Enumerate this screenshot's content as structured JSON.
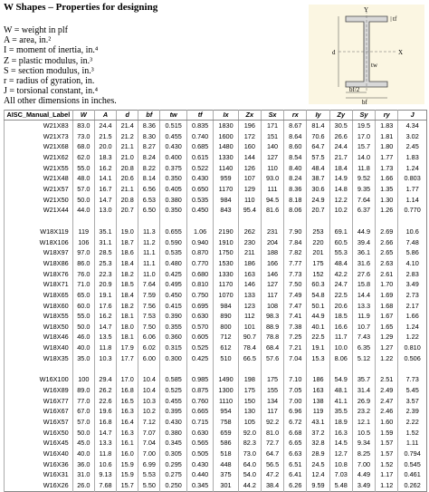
{
  "header": {
    "title": "W Shapes – Properties for designing"
  },
  "legend": [
    "W = weight in plf",
    "A = area, in.²",
    "I = moment of inertia, in.⁴",
    "Z = plastic modulus, in.³",
    "S = section modulus, in.³",
    "r = radius of gyration, in.",
    "J = torsional constant, in.⁴",
    "All other dimensions in inches."
  ],
  "diagram": {
    "labels": [
      "Y",
      "X",
      "d",
      "tf",
      "tw",
      "bf/2",
      "bf"
    ]
  },
  "table": {
    "columns": [
      "AISC_Manual_Label",
      "W",
      "A",
      "d",
      "bf",
      "tw",
      "tf",
      "Ix",
      "Zx",
      "Sx",
      "rx",
      "Iy",
      "Zy",
      "Sy",
      "ry",
      "J"
    ],
    "groups": [
      {
        "rows": [
          [
            "W21X83",
            "83.0",
            "24.4",
            "21.4",
            "8.36",
            "0.515",
            "0.835",
            "1830",
            "196",
            "171",
            "8.67",
            "81.4",
            "30.5",
            "19.5",
            "1.83",
            "4.34"
          ],
          [
            "W21X73",
            "73.0",
            "21.5",
            "21.2",
            "8.30",
            "0.455",
            "0.740",
            "1600",
            "172",
            "151",
            "8.64",
            "70.6",
            "26.6",
            "17.0",
            "1.81",
            "3.02"
          ],
          [
            "W21X68",
            "68.0",
            "20.0",
            "21.1",
            "8.27",
            "0.430",
            "0.685",
            "1480",
            "160",
            "140",
            "8.60",
            "64.7",
            "24.4",
            "15.7",
            "1.80",
            "2.45"
          ],
          [
            "W21X62",
            "62.0",
            "18.3",
            "21.0",
            "8.24",
            "0.400",
            "0.615",
            "1330",
            "144",
            "127",
            "8.54",
            "57.5",
            "21.7",
            "14.0",
            "1.77",
            "1.83"
          ],
          [
            "W21X55",
            "55.0",
            "16.2",
            "20.8",
            "8.22",
            "0.375",
            "0.522",
            "1140",
            "126",
            "110",
            "8.40",
            "48.4",
            "18.4",
            "11.8",
            "1.73",
            "1.24"
          ],
          [
            "W21X48",
            "48.0",
            "14.1",
            "20.6",
            "8.14",
            "0.350",
            "0.430",
            "959",
            "107",
            "93.0",
            "8.24",
            "38.7",
            "14.9",
            "9.52",
            "1.66",
            "0.803"
          ],
          [
            "W21X57",
            "57.0",
            "16.7",
            "21.1",
            "6.56",
            "0.405",
            "0.650",
            "1170",
            "129",
            "111",
            "8.36",
            "30.6",
            "14.8",
            "9.35",
            "1.35",
            "1.77"
          ],
          [
            "W21X50",
            "50.0",
            "14.7",
            "20.8",
            "6.53",
            "0.380",
            "0.535",
            "984",
            "110",
            "94.5",
            "8.18",
            "24.9",
            "12.2",
            "7.64",
            "1.30",
            "1.14"
          ],
          [
            "W21X44",
            "44.0",
            "13.0",
            "20.7",
            "6.50",
            "0.350",
            "0.450",
            "843",
            "95.4",
            "81.6",
            "8.06",
            "20.7",
            "10.2",
            "6.37",
            "1.26",
            "0.770"
          ]
        ]
      },
      {
        "rows": [
          [
            "W18X119",
            "119",
            "35.1",
            "19.0",
            "11.3",
            "0.655",
            "1.06",
            "2190",
            "262",
            "231",
            "7.90",
            "253",
            "69.1",
            "44.9",
            "2.69",
            "10.6"
          ],
          [
            "W18X106",
            "106",
            "31.1",
            "18.7",
            "11.2",
            "0.590",
            "0.940",
            "1910",
            "230",
            "204",
            "7.84",
            "220",
            "60.5",
            "39.4",
            "2.66",
            "7.48"
          ],
          [
            "W18X97",
            "97.0",
            "28.5",
            "18.6",
            "11.1",
            "0.535",
            "0.870",
            "1750",
            "211",
            "188",
            "7.82",
            "201",
            "55.3",
            "36.1",
            "2.65",
            "5.86"
          ],
          [
            "W18X86",
            "86.0",
            "25.3",
            "18.4",
            "11.1",
            "0.480",
            "0.770",
            "1530",
            "186",
            "166",
            "7.77",
            "175",
            "48.4",
            "31.6",
            "2.63",
            "4.10"
          ],
          [
            "W18X76",
            "76.0",
            "22.3",
            "18.2",
            "11.0",
            "0.425",
            "0.680",
            "1330",
            "163",
            "146",
            "7.73",
            "152",
            "42.2",
            "27.6",
            "2.61",
            "2.83"
          ],
          [
            "W18X71",
            "71.0",
            "20.9",
            "18.5",
            "7.64",
            "0.495",
            "0.810",
            "1170",
            "146",
            "127",
            "7.50",
            "60.3",
            "24.7",
            "15.8",
            "1.70",
            "3.49"
          ],
          [
            "W18X65",
            "65.0",
            "19.1",
            "18.4",
            "7.59",
            "0.450",
            "0.750",
            "1070",
            "133",
            "117",
            "7.49",
            "54.8",
            "22.5",
            "14.4",
            "1.69",
            "2.73"
          ],
          [
            "W18X60",
            "60.0",
            "17.6",
            "18.2",
            "7.56",
            "0.415",
            "0.695",
            "984",
            "123",
            "108",
            "7.47",
            "50.1",
            "20.6",
            "13.3",
            "1.68",
            "2.17"
          ],
          [
            "W18X55",
            "55.0",
            "16.2",
            "18.1",
            "7.53",
            "0.390",
            "0.630",
            "890",
            "112",
            "98.3",
            "7.41",
            "44.9",
            "18.5",
            "11.9",
            "1.67",
            "1.66"
          ],
          [
            "W18X50",
            "50.0",
            "14.7",
            "18.0",
            "7.50",
            "0.355",
            "0.570",
            "800",
            "101",
            "88.9",
            "7.38",
            "40.1",
            "16.6",
            "10.7",
            "1.65",
            "1.24"
          ],
          [
            "W18X46",
            "46.0",
            "13.5",
            "18.1",
            "6.06",
            "0.360",
            "0.605",
            "712",
            "90.7",
            "78.8",
            "7.25",
            "22.5",
            "11.7",
            "7.43",
            "1.29",
            "1.22"
          ],
          [
            "W18X40",
            "40.0",
            "11.8",
            "17.9",
            "6.02",
            "0.315",
            "0.525",
            "612",
            "78.4",
            "68.4",
            "7.21",
            "19.1",
            "10.0",
            "6.35",
            "1.27",
            "0.810"
          ],
          [
            "W18X35",
            "35.0",
            "10.3",
            "17.7",
            "6.00",
            "0.300",
            "0.425",
            "510",
            "66.5",
            "57.6",
            "7.04",
            "15.3",
            "8.06",
            "5.12",
            "1.22",
            "0.506"
          ]
        ]
      },
      {
        "rows": [
          [
            "W16X100",
            "100",
            "29.4",
            "17.0",
            "10.4",
            "0.585",
            "0.985",
            "1490",
            "198",
            "175",
            "7.10",
            "186",
            "54.9",
            "35.7",
            "2.51",
            "7.73"
          ],
          [
            "W16X89",
            "89.0",
            "26.2",
            "16.8",
            "10.4",
            "0.525",
            "0.875",
            "1300",
            "175",
            "155",
            "7.05",
            "163",
            "48.1",
            "31.4",
            "2.49",
            "5.45"
          ],
          [
            "W16X77",
            "77.0",
            "22.6",
            "16.5",
            "10.3",
            "0.455",
            "0.760",
            "1110",
            "150",
            "134",
            "7.00",
            "138",
            "41.1",
            "26.9",
            "2.47",
            "3.57"
          ],
          [
            "W16X67",
            "67.0",
            "19.6",
            "16.3",
            "10.2",
            "0.395",
            "0.665",
            "954",
            "130",
            "117",
            "6.96",
            "119",
            "35.5",
            "23.2",
            "2.46",
            "2.39"
          ],
          [
            "W16X57",
            "57.0",
            "16.8",
            "16.4",
            "7.12",
            "0.430",
            "0.715",
            "758",
            "105",
            "92.2",
            "6.72",
            "43.1",
            "18.9",
            "12.1",
            "1.60",
            "2.22"
          ],
          [
            "W16X50",
            "50.0",
            "14.7",
            "16.3",
            "7.07",
            "0.380",
            "0.630",
            "659",
            "92.0",
            "81.0",
            "6.68",
            "37.2",
            "16.3",
            "10.5",
            "1.59",
            "1.52"
          ],
          [
            "W16X45",
            "45.0",
            "13.3",
            "16.1",
            "7.04",
            "0.345",
            "0.565",
            "586",
            "82.3",
            "72.7",
            "6.65",
            "32.8",
            "14.5",
            "9.34",
            "1.57",
            "1.11"
          ],
          [
            "W16X40",
            "40.0",
            "11.8",
            "16.0",
            "7.00",
            "0.305",
            "0.505",
            "518",
            "73.0",
            "64.7",
            "6.63",
            "28.9",
            "12.7",
            "8.25",
            "1.57",
            "0.794"
          ],
          [
            "W16X36",
            "36.0",
            "10.6",
            "15.9",
            "6.99",
            "0.295",
            "0.430",
            "448",
            "64.0",
            "56.5",
            "6.51",
            "24.5",
            "10.8",
            "7.00",
            "1.52",
            "0.545"
          ],
          [
            "W16X31",
            "31.0",
            "9.13",
            "15.9",
            "5.53",
            "0.275",
            "0.440",
            "375",
            "54.0",
            "47.2",
            "6.41",
            "12.4",
            "7.03",
            "4.49",
            "1.17",
            "0.461"
          ],
          [
            "W16X26",
            "26.0",
            "7.68",
            "15.7",
            "5.50",
            "0.250",
            "0.345",
            "301",
            "44.2",
            "38.4",
            "6.26",
            "9.59",
            "5.48",
            "3.49",
            "1.12",
            "0.262"
          ]
        ]
      }
    ]
  }
}
